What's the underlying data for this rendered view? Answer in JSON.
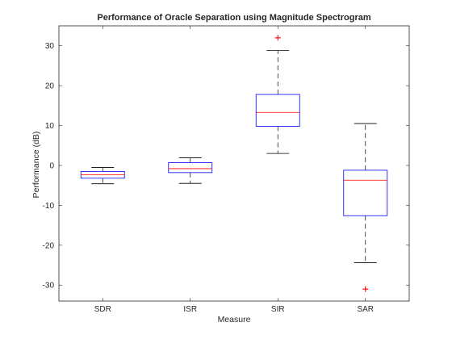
{
  "chart_data": {
    "type": "box",
    "title": "Performance of Oracle Separation using Magnitude Spectrogram",
    "xlabel": "Measure",
    "ylabel": "Performance (dB)",
    "ylim": [
      -34,
      35
    ],
    "yticks": [
      -30,
      -20,
      -10,
      0,
      10,
      20,
      30
    ],
    "categories": [
      "SDR",
      "ISR",
      "SIR",
      "SAR"
    ],
    "boxes": [
      {
        "category": "SDR",
        "whisker_low": -4.6,
        "q1": -3.2,
        "median": -2.3,
        "q3": -1.5,
        "whisker_high": -0.5,
        "outliers": []
      },
      {
        "category": "ISR",
        "whisker_low": -4.5,
        "q1": -1.8,
        "median": -0.8,
        "q3": 0.7,
        "whisker_high": 1.9,
        "outliers": []
      },
      {
        "category": "SIR",
        "whisker_low": 3.0,
        "q1": 9.8,
        "median": 13.3,
        "q3": 17.8,
        "whisker_high": 28.8,
        "outliers": [
          32.0
        ]
      },
      {
        "category": "SAR",
        "whisker_low": -24.4,
        "q1": -12.6,
        "median": -3.7,
        "q3": -1.2,
        "whisker_high": 10.5,
        "outliers": [
          -31.0
        ]
      }
    ],
    "colors": {
      "box": "#0000ff",
      "median": "#ff0000",
      "whisker": "#000000",
      "outlier": "#ff0000",
      "axes": "#262626"
    },
    "grid": false,
    "legend": "none"
  }
}
